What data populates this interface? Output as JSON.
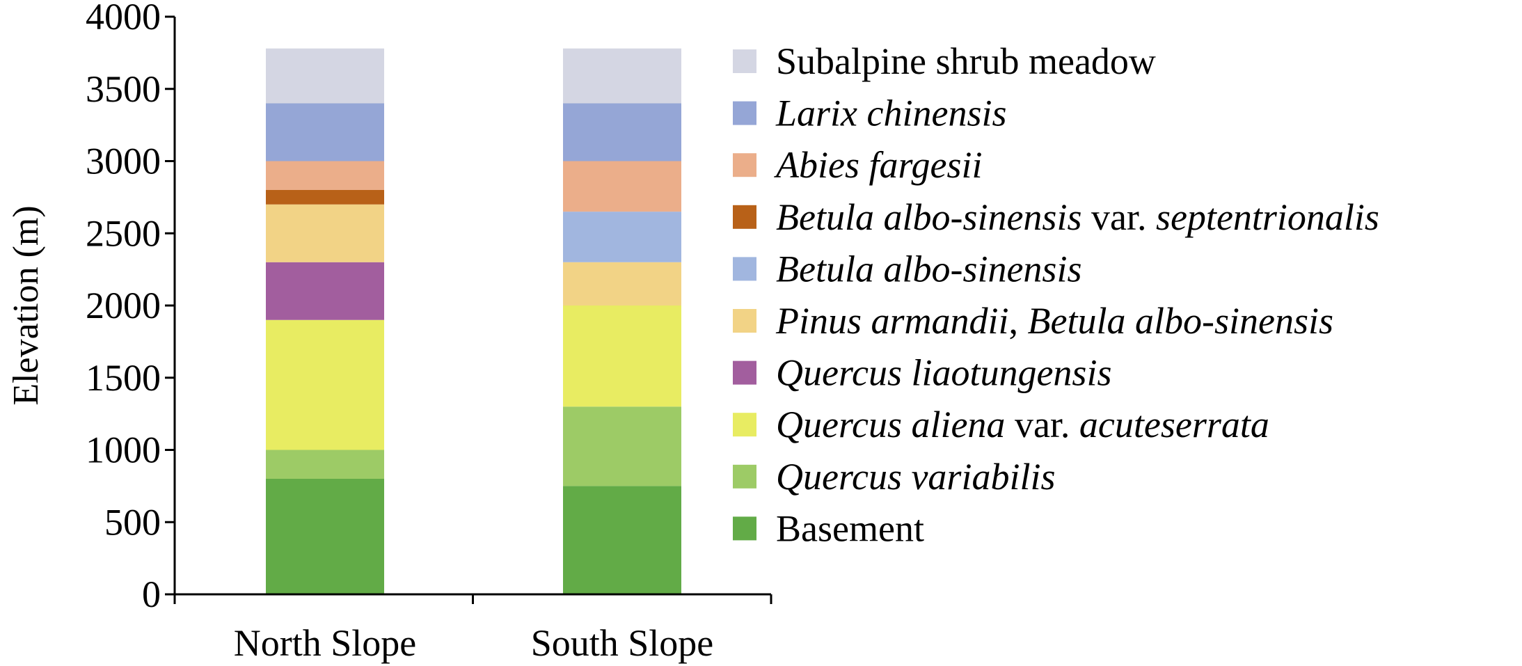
{
  "chart_data": {
    "type": "bar",
    "stacked": true,
    "categories": [
      "North Slope",
      "South Slope"
    ],
    "ylabel": "Elevation (m)",
    "ylim": [
      0,
      4000
    ],
    "yticks": [
      0,
      500,
      1000,
      1500,
      2000,
      2500,
      3000,
      3500,
      4000
    ],
    "tick_labels": [
      "0",
      "500",
      "1000",
      "1500",
      "2000",
      "2500",
      "3000",
      "3500",
      "4000"
    ],
    "grid": false,
    "legend_position": "right",
    "series": [
      {
        "name": "Basement",
        "parts": [
          {
            "text": "Basement",
            "italic": false
          }
        ],
        "color": "#62ab47",
        "values": [
          800,
          750
        ]
      },
      {
        "name": "Quercus variabilis",
        "parts": [
          {
            "text": "Quercus variabilis",
            "italic": true
          }
        ],
        "color": "#9dcb66",
        "values": [
          200,
          550
        ]
      },
      {
        "name": "Quercus aliena var. acuteserrata",
        "parts": [
          {
            "text": "Quercus aliena",
            "italic": true
          },
          {
            "text": " var. ",
            "italic": false
          },
          {
            "text": "acuteserrata",
            "italic": true
          }
        ],
        "color": "#e8ec62",
        "values": [
          900,
          700
        ]
      },
      {
        "name": "Quercus liaotungensis",
        "parts": [
          {
            "text": "Quercus liaotungensis",
            "italic": true
          }
        ],
        "color": "#a25e9e",
        "values": [
          400,
          0
        ]
      },
      {
        "name": "Pinus armandii, Betula albo-sinensis",
        "parts": [
          {
            "text": "Pinus armandii",
            "italic": true
          },
          {
            "text": ", ",
            "italic": false
          },
          {
            "text": "Betula albo-sinensis",
            "italic": true
          }
        ],
        "color": "#f2d386",
        "values": [
          400,
          300
        ]
      },
      {
        "name": "Betula albo-sinensis",
        "parts": [
          {
            "text": "Betula albo-sinensis",
            "italic": true
          }
        ],
        "color": "#a1b6df",
        "values": [
          0,
          350
        ]
      },
      {
        "name": "Betula albo-sinensis var. septentrionalis",
        "parts": [
          {
            "text": "Betula albo-sinensis",
            "italic": true
          },
          {
            "text": " var. ",
            "italic": false
          },
          {
            "text": "septentrionalis",
            "italic": true
          }
        ],
        "color": "#b86118",
        "values": [
          100,
          0
        ]
      },
      {
        "name": "Abies fargesii",
        "parts": [
          {
            "text": "Abies fargesii",
            "italic": true
          }
        ],
        "color": "#ebae8a",
        "values": [
          200,
          350
        ]
      },
      {
        "name": "Larix chinensis",
        "parts": [
          {
            "text": "Larix chinensis",
            "italic": true
          }
        ],
        "color": "#95a6d6",
        "values": [
          400,
          400
        ]
      },
      {
        "name": "Subalpine shrub meadow",
        "parts": [
          {
            "text": "Subalpine shrub meadow",
            "italic": false
          }
        ],
        "color": "#d4d6e3",
        "values": [
          380,
          380
        ]
      }
    ]
  }
}
